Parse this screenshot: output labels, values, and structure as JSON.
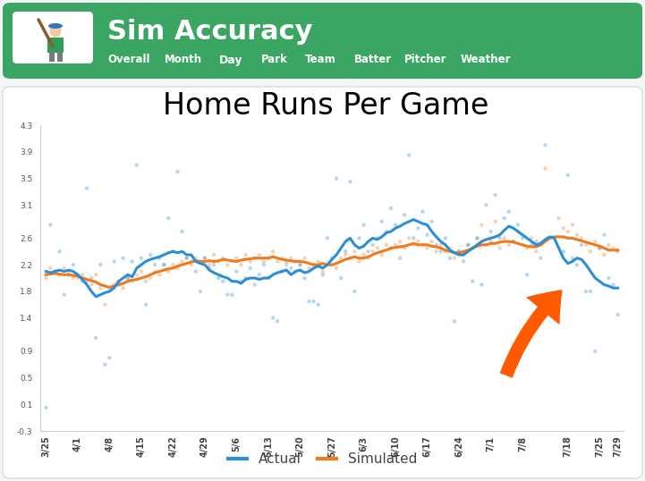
{
  "header": {
    "title": "Sim Accuracy",
    "nav": [
      "Overall",
      "Month",
      "Day",
      "Park",
      "Team",
      "Batter",
      "Pitcher",
      "Weather"
    ],
    "selected": "Day"
  },
  "chart_data": {
    "type": "line",
    "title": "Home Runs Per Game",
    "categories": [
      "3/25",
      null,
      null,
      null,
      null,
      null,
      null,
      "4/1",
      null,
      null,
      null,
      null,
      null,
      null,
      "4/8",
      null,
      null,
      null,
      null,
      null,
      null,
      "4/15",
      null,
      null,
      null,
      null,
      null,
      null,
      "4/22",
      null,
      null,
      null,
      null,
      null,
      null,
      "4/29",
      null,
      null,
      null,
      null,
      null,
      null,
      "5/6",
      null,
      null,
      null,
      null,
      null,
      null,
      "5/13",
      null,
      null,
      null,
      null,
      null,
      null,
      "5/20",
      null,
      null,
      null,
      null,
      null,
      null,
      "5/27",
      null,
      null,
      null,
      null,
      null,
      null,
      "6/3",
      null,
      null,
      null,
      null,
      null,
      null,
      "6/10",
      null,
      null,
      null,
      null,
      null,
      null,
      "6/17",
      null,
      null,
      null,
      null,
      null,
      null,
      "6/24",
      null,
      null,
      null,
      null,
      null,
      null,
      "7/1",
      null,
      null,
      null,
      null,
      null,
      null,
      "7/8",
      null,
      null,
      null,
      null,
      null,
      null,
      null,
      null,
      null,
      "7/18",
      null,
      null,
      null,
      null,
      null,
      null,
      "7/25",
      null,
      null,
      null,
      "7/29"
    ],
    "ylim": [
      -0.3,
      4.3
    ],
    "yticks": [
      -0.3,
      0.1,
      0.5,
      0.9,
      1.4,
      1.8,
      2.2,
      2.6,
      3.1,
      3.5,
      3.9,
      4.3
    ],
    "grid": false,
    "legend": "bottom",
    "series": [
      {
        "name": "Actual",
        "color": "#2b8fd5",
        "values": [
          2.1,
          2.08,
          2.1,
          2.12,
          2.1,
          2.12,
          2.1,
          2.05,
          1.98,
          1.9,
          1.8,
          1.72,
          1.75,
          1.78,
          1.8,
          1.85,
          1.95,
          2.0,
          2.05,
          2.02,
          2.15,
          2.2,
          2.25,
          2.28,
          2.3,
          2.32,
          2.35,
          2.38,
          2.4,
          2.38,
          2.4,
          2.35,
          2.35,
          2.25,
          2.22,
          2.2,
          2.12,
          2.08,
          2.05,
          2.02,
          2.0,
          1.95,
          1.95,
          1.92,
          1.98,
          2.0,
          2.0,
          1.98,
          2.0,
          2.0,
          2.05,
          2.08,
          2.1,
          2.12,
          2.05,
          2.1,
          2.12,
          2.08,
          2.1,
          2.15,
          2.18,
          2.15,
          2.2,
          2.28,
          2.35,
          2.45,
          2.55,
          2.6,
          2.5,
          2.45,
          2.48,
          2.55,
          2.6,
          2.58,
          2.62,
          2.68,
          2.7,
          2.75,
          2.78,
          2.82,
          2.85,
          2.88,
          2.85,
          2.82,
          2.8,
          2.7,
          2.62,
          2.55,
          2.5,
          2.42,
          2.38,
          2.35,
          2.35,
          2.4,
          2.45,
          2.5,
          2.55,
          2.58,
          2.6,
          2.62,
          2.65,
          2.72,
          2.78,
          2.75,
          2.7,
          2.65,
          2.6,
          2.55,
          2.5,
          2.52,
          2.58,
          2.62,
          2.6,
          2.45,
          2.3,
          2.22,
          2.25,
          2.3,
          2.28,
          2.2,
          2.1,
          2.0,
          1.95,
          1.9,
          1.88,
          1.85,
          1.85
        ],
        "daily_values": [
          0.05,
          2.8,
          2.1,
          2.4,
          1.75,
          2.05,
          2.2,
          2.05,
          1.95,
          3.35,
          2.0,
          1.1,
          2.2,
          0.7,
          0.8,
          2.25,
          1.9,
          2.3,
          2.0,
          2.25,
          3.7,
          2.3,
          1.6,
          2.35,
          2.2,
          2.3,
          2.2,
          2.9,
          2.4,
          3.6,
          2.7,
          2.3,
          2.25,
          2.1,
          1.8,
          2.3,
          2.15,
          2.2,
          2.0,
          1.95,
          1.75,
          1.75,
          2.1,
          1.95,
          2.0,
          2.15,
          1.9,
          2.05,
          2.2,
          2.0,
          1.4,
          1.35,
          2.1,
          2.25,
          2.15,
          2.1,
          2.2,
          2.0,
          1.65,
          1.65,
          1.6,
          2.05,
          2.6,
          2.3,
          3.5,
          2.0,
          2.4,
          3.45,
          1.8,
          2.6,
          2.8,
          2.4,
          2.5,
          2.6,
          2.85,
          2.7,
          3.05,
          2.8,
          2.3,
          2.95,
          3.85,
          2.6,
          2.75,
          3.0,
          2.65,
          2.85,
          2.5,
          2.4,
          2.6,
          2.3,
          1.35,
          2.4,
          2.25,
          2.5,
          1.95,
          2.6,
          1.9,
          3.1,
          2.7,
          3.25,
          2.6,
          2.9,
          3.0,
          2.55,
          2.8,
          2.6,
          2.05,
          2.5,
          2.55,
          2.3,
          4.0,
          null,
          null,
          1.8,
          2.4,
          3.55,
          2.3,
          2.2,
          2.5,
          1.8,
          1.8,
          0.9,
          2.45,
          2.65,
          2.0,
          1.9,
          1.45
        ]
      },
      {
        "name": "Simulated",
        "color": "#f07a1e",
        "values": [
          2.05,
          2.06,
          2.07,
          2.06,
          2.05,
          2.05,
          2.04,
          2.03,
          2.0,
          1.98,
          1.96,
          1.94,
          1.9,
          1.88,
          1.86,
          1.88,
          1.9,
          1.92,
          1.95,
          1.97,
          1.98,
          2.0,
          2.02,
          2.05,
          2.08,
          2.1,
          2.12,
          2.14,
          2.15,
          2.18,
          2.2,
          2.22,
          2.24,
          2.26,
          2.25,
          2.25,
          2.26,
          2.25,
          2.26,
          2.28,
          2.27,
          2.26,
          2.25,
          2.27,
          2.28,
          2.29,
          2.3,
          2.3,
          2.3,
          2.3,
          2.32,
          2.3,
          2.28,
          2.27,
          2.26,
          2.25,
          2.25,
          2.24,
          2.22,
          2.2,
          2.2,
          2.22,
          2.2,
          2.2,
          2.22,
          2.25,
          2.28,
          2.3,
          2.32,
          2.3,
          2.3,
          2.32,
          2.35,
          2.38,
          2.4,
          2.42,
          2.45,
          2.46,
          2.47,
          2.48,
          2.5,
          2.52,
          2.5,
          2.5,
          2.5,
          2.48,
          2.47,
          2.45,
          2.42,
          2.4,
          2.38,
          2.38,
          2.4,
          2.42,
          2.45,
          2.48,
          2.5,
          2.5,
          2.52,
          2.52,
          2.54,
          2.55,
          2.55,
          2.54,
          2.52,
          2.5,
          2.48,
          2.47,
          2.47,
          2.5,
          2.55,
          2.6,
          2.62,
          2.62,
          2.62,
          2.6,
          2.6,
          2.58,
          2.56,
          2.54,
          2.52,
          2.5,
          2.48,
          2.45,
          2.42,
          2.42,
          2.42
        ],
        "daily_values": [
          2.0,
          2.15,
          2.1,
          2.05,
          2.15,
          2.1,
          2.0,
          2.0,
          2.05,
          1.95,
          1.9,
          2.05,
          1.85,
          1.6,
          1.85,
          1.9,
          1.95,
          1.85,
          2.0,
          1.95,
          2.05,
          2.1,
          1.95,
          2.0,
          2.1,
          2.05,
          2.2,
          2.1,
          2.2,
          2.15,
          2.25,
          2.3,
          2.2,
          2.3,
          2.25,
          2.3,
          2.2,
          2.35,
          2.25,
          2.3,
          2.2,
          2.25,
          2.3,
          2.2,
          2.35,
          2.25,
          2.3,
          2.35,
          2.25,
          2.3,
          2.4,
          2.25,
          2.3,
          2.2,
          2.3,
          2.25,
          2.2,
          2.3,
          2.15,
          2.2,
          2.25,
          2.1,
          2.2,
          2.2,
          2.15,
          2.3,
          2.35,
          2.3,
          2.4,
          2.25,
          2.35,
          2.3,
          2.4,
          2.45,
          2.35,
          2.5,
          2.45,
          2.5,
          2.55,
          2.45,
          2.6,
          2.5,
          2.55,
          2.5,
          2.45,
          2.55,
          2.4,
          2.5,
          2.4,
          2.45,
          2.3,
          2.4,
          2.35,
          2.5,
          2.45,
          2.6,
          2.8,
          2.5,
          2.55,
          2.85,
          2.45,
          2.6,
          2.5,
          2.55,
          2.7,
          2.5,
          2.45,
          2.6,
          2.4,
          2.5,
          3.65,
          null,
          null,
          2.9,
          2.75,
          2.7,
          2.8,
          2.65,
          2.6,
          2.5,
          2.4,
          2.55,
          2.45,
          2.35,
          2.5,
          2.45,
          2.4
        ]
      }
    ]
  }
}
